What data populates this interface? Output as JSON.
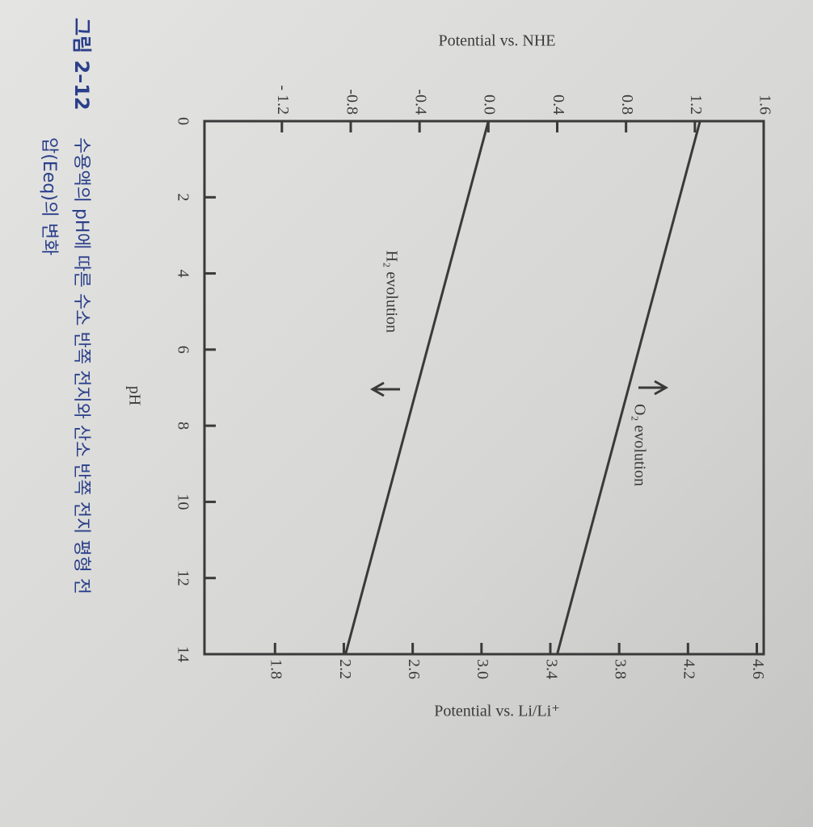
{
  "chart_data": {
    "type": "line",
    "x_label": "pH",
    "y_label": "Potential vs. NHE",
    "y2_label": "Potential vs. Li/Li⁺",
    "x": [
      0,
      14
    ],
    "series": [
      {
        "name": "O₂ evolution",
        "color": "#3a3a3a",
        "values": [
          1.23,
          0.4
        ]
      },
      {
        "name": "H₂ evolution",
        "color": "#3a3a3a",
        "values": [
          0,
          -0.83
        ]
      }
    ],
    "xlim": [
      0,
      14
    ],
    "xticks": [
      0,
      2,
      4,
      6,
      8,
      10,
      12,
      14
    ],
    "ylim": [
      -1.65,
      1.6
    ],
    "yticks": [
      {
        "value": -1.2,
        "label": "- 1.2"
      },
      -0.8,
      -0.4,
      {
        "value": 0,
        "label": "0.0"
      },
      0.4,
      0.8,
      1.2,
      1.6
    ],
    "y2lim": [
      1.39,
      4.64
    ],
    "y2ticks": [
      1.8,
      2.2,
      2.6,
      {
        "value": 3,
        "label": "3.0"
      },
      3.4,
      3.8,
      4.2,
      4.6
    ],
    "caption_label": "그림 2–12",
    "caption_lines": [
      "수용액의 pH에 따른 수소 반쪽 전지와 산소 반쪽 전지 평형 전",
      "압(Eeq)의 변화"
    ]
  }
}
